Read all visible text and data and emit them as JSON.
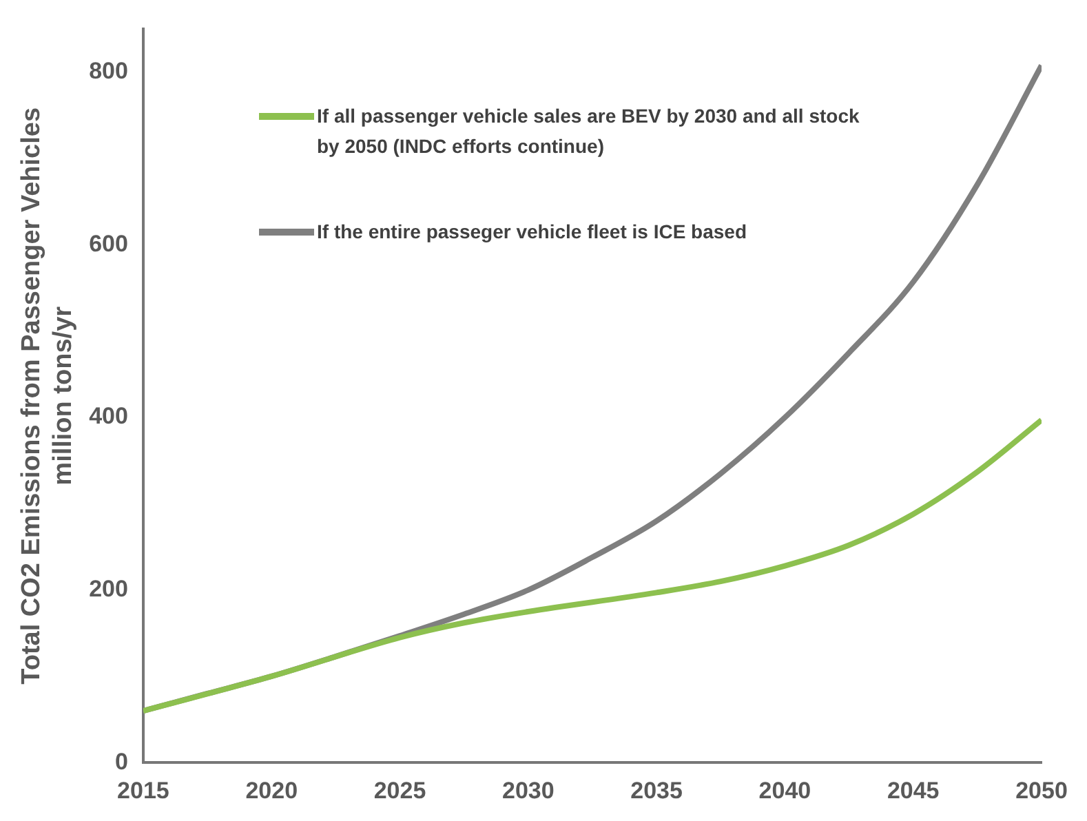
{
  "chart_data": {
    "type": "line",
    "ylabel": "Total CO2 Emissions from Passenger Vehicles\nmillion tons/yr",
    "xlim": [
      2015,
      2050
    ],
    "xticks": [
      2015,
      2020,
      2025,
      2030,
      2035,
      2040,
      2045,
      2050
    ],
    "ylim": [
      0,
      850
    ],
    "yticks": [
      0,
      200,
      400,
      600,
      800
    ],
    "grid": false,
    "legend": "top left",
    "marker": "none",
    "line_style": "solid",
    "series": [
      {
        "name": "If all passenger vehicle sales are BEV by 2030 and all stock by 2050 (INDC efforts continue)",
        "color": "#8dc04f",
        "x": [
          2015,
          2020,
          2025,
          2027.5,
          2030,
          2035,
          2037.5,
          2040,
          2042.5,
          2045,
          2047.5,
          2050
        ],
        "values": [
          60,
          100,
          145,
          162,
          175,
          197,
          210,
          228,
          252,
          288,
          337,
          397
        ]
      },
      {
        "name": "If the entire passeger vehicle fleet is ICE based",
        "color": "#7f7f7f",
        "x": [
          2015,
          2017.5,
          2020,
          2022.5,
          2025,
          2027.5,
          2030,
          2032.5,
          2035,
          2037.5,
          2040,
          2042.5,
          2045,
          2047.5,
          2050
        ],
        "values": [
          60,
          80,
          100,
          123,
          147,
          172,
          200,
          238,
          280,
          335,
          400,
          475,
          557,
          670,
          808
        ]
      }
    ]
  }
}
